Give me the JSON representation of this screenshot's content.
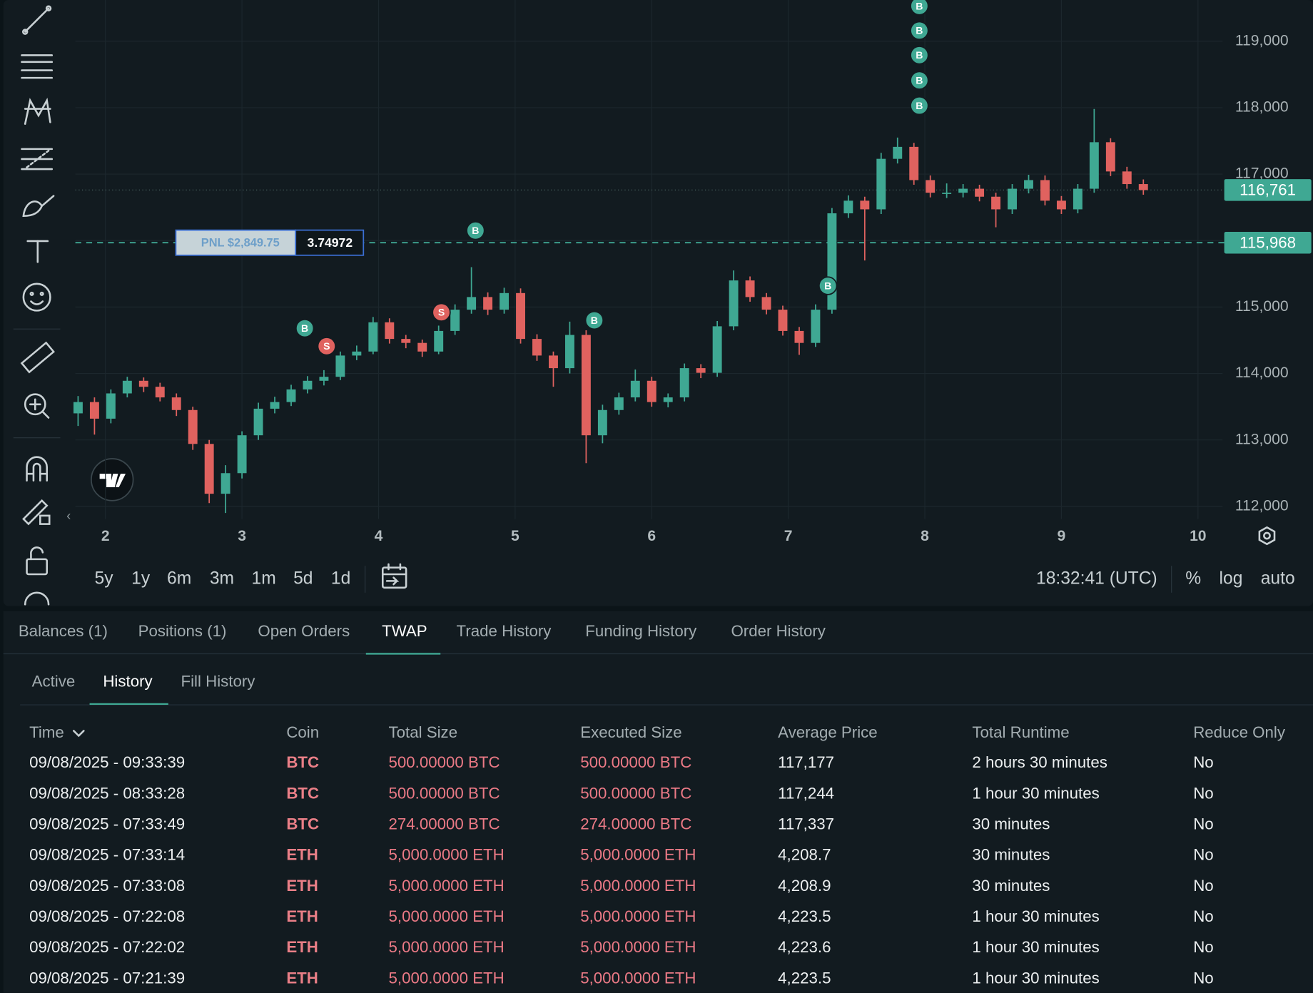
{
  "chart_data": {
    "type": "candlestick",
    "x": [
      1.8,
      1.92,
      2.04,
      2.16,
      2.28,
      2.4,
      2.52,
      2.64,
      2.76,
      2.88,
      3,
      3.12,
      3.24,
      3.36,
      3.48,
      3.6,
      3.72,
      3.84,
      3.96,
      4.08,
      4.2,
      4.32,
      4.44,
      4.56,
      4.68,
      4.8,
      4.92,
      5.04,
      5.16,
      5.28,
      5.4,
      5.52,
      5.64,
      5.76,
      5.88,
      6,
      6.12,
      6.24,
      6.36,
      6.48,
      6.6,
      6.72,
      6.84,
      6.96,
      7.08,
      7.2,
      7.32,
      7.44,
      7.56,
      7.68,
      7.8,
      7.92,
      8.04,
      8.16,
      8.28,
      8.4,
      8.52,
      8.64,
      8.76,
      8.88,
      9,
      9.12,
      9.24,
      9.36,
      9.48,
      9.6
    ],
    "ohlc": [
      [
        113400,
        113660,
        113210,
        113570
      ],
      [
        113570,
        113640,
        113080,
        113320
      ],
      [
        113320,
        113760,
        113250,
        113700
      ],
      [
        113700,
        113950,
        113640,
        113890
      ],
      [
        113890,
        113940,
        113720,
        113800
      ],
      [
        113800,
        113860,
        113580,
        113640
      ],
      [
        113640,
        113700,
        113360,
        113450
      ],
      [
        113450,
        113500,
        112850,
        112940
      ],
      [
        112940,
        113000,
        112050,
        112190
      ],
      [
        112190,
        112620,
        111900,
        112500
      ],
      [
        112500,
        113130,
        112420,
        113070
      ],
      [
        113070,
        113560,
        113000,
        113470
      ],
      [
        113470,
        113650,
        113400,
        113570
      ],
      [
        113570,
        113830,
        113510,
        113760
      ],
      [
        113760,
        113960,
        113700,
        113890
      ],
      [
        113890,
        114050,
        113820,
        113950
      ],
      [
        113950,
        114330,
        113900,
        114270
      ],
      [
        114270,
        114420,
        114200,
        114330
      ],
      [
        114330,
        114850,
        114290,
        114770
      ],
      [
        114770,
        114830,
        114450,
        114520
      ],
      [
        114520,
        114580,
        114380,
        114460
      ],
      [
        114460,
        114510,
        114250,
        114330
      ],
      [
        114330,
        114720,
        114290,
        114640
      ],
      [
        114640,
        115040,
        114580,
        114960
      ],
      [
        114960,
        115600,
        114900,
        115150
      ],
      [
        115150,
        115220,
        114880,
        114960
      ],
      [
        114960,
        115290,
        114900,
        115210
      ],
      [
        115210,
        115280,
        114450,
        114520
      ],
      [
        114520,
        114590,
        114190,
        114270
      ],
      [
        114270,
        114330,
        113800,
        114080
      ],
      [
        114080,
        114780,
        114000,
        114580
      ],
      [
        114580,
        114650,
        112650,
        113070
      ],
      [
        113070,
        113530,
        112950,
        113450
      ],
      [
        113450,
        113710,
        113380,
        113640
      ],
      [
        113640,
        114060,
        113580,
        113890
      ],
      [
        113890,
        113950,
        113500,
        113570
      ],
      [
        113570,
        113700,
        113490,
        113640
      ],
      [
        113640,
        114150,
        113580,
        114080
      ],
      [
        114080,
        114140,
        113930,
        114010
      ],
      [
        114010,
        114790,
        113950,
        114710
      ],
      [
        114710,
        115550,
        114650,
        115400
      ],
      [
        115400,
        115460,
        115080,
        115150
      ],
      [
        115150,
        115210,
        114890,
        114960
      ],
      [
        114960,
        115020,
        114570,
        114640
      ],
      [
        114640,
        114700,
        114280,
        114460
      ],
      [
        114460,
        115040,
        114400,
        114960
      ],
      [
        114960,
        116490,
        114900,
        116410
      ],
      [
        116410,
        116680,
        116340,
        116600
      ],
      [
        116600,
        116660,
        115700,
        116470
      ],
      [
        116470,
        117320,
        116400,
        117230
      ],
      [
        117230,
        117550,
        117160,
        117410
      ],
      [
        117410,
        117470,
        116840,
        116910
      ],
      [
        116910,
        116980,
        116650,
        116720
      ],
      [
        116720,
        116860,
        116640,
        116720
      ],
      [
        116720,
        116850,
        116650,
        116780
      ],
      [
        116780,
        116840,
        116590,
        116660
      ],
      [
        116660,
        116720,
        116200,
        116470
      ],
      [
        116470,
        116850,
        116400,
        116780
      ],
      [
        116780,
        116990,
        116710,
        116910
      ],
      [
        116910,
        116980,
        116530,
        116600
      ],
      [
        116600,
        116670,
        116400,
        116470
      ],
      [
        116470,
        116850,
        116410,
        116780
      ],
      [
        116780,
        117980,
        116720,
        117480
      ],
      [
        117480,
        117540,
        116970,
        117040
      ],
      [
        117040,
        117110,
        116780,
        116850
      ],
      [
        116850,
        116920,
        116690,
        116760
      ]
    ],
    "up_color": "#3fa893",
    "down_color": "#e0625f",
    "xlim": [
      1.78,
      10.18
    ],
    "xticks": [
      2,
      3,
      4,
      5,
      6,
      7,
      8,
      9,
      10
    ],
    "ylim": [
      111810,
      119620
    ],
    "yticks": [
      {
        "value": 112000,
        "label": "112,000"
      },
      {
        "value": 113000,
        "label": "113,000"
      },
      {
        "value": 114000,
        "label": "114,000"
      },
      {
        "value": 115000,
        "label": "115,000"
      },
      {
        "value": 116000,
        "label": "116,000"
      },
      {
        "value": 117000,
        "label": "117,000"
      },
      {
        "value": 118000,
        "label": "118,000"
      },
      {
        "value": 119000,
        "label": "119,000"
      }
    ],
    "grid": true,
    "markers": [
      {
        "label": "B",
        "x": 3.46,
        "price": 114680
      },
      {
        "label": "S",
        "x": 3.62,
        "price": 114410
      },
      {
        "label": "S",
        "x": 4.46,
        "price": 114920
      },
      {
        "label": "B",
        "x": 4.71,
        "price": 116150
      },
      {
        "label": "B",
        "x": 5.58,
        "price": 114800
      },
      {
        "label": "B",
        "x": 7.29,
        "price": 115320
      },
      {
        "label": "B",
        "x": 7.96,
        "price": 119530
      },
      {
        "label": "B",
        "x": 7.96,
        "price": 119160
      },
      {
        "label": "B",
        "x": 7.96,
        "price": 118790
      },
      {
        "label": "B",
        "x": 7.96,
        "price": 118410
      },
      {
        "label": "B",
        "x": 7.96,
        "price": 118030
      }
    ],
    "price_lines": [
      {
        "value": 116761,
        "label": "116,761",
        "style": "dotted"
      },
      {
        "value": 115968,
        "label": "115,968",
        "style": "dashed"
      }
    ],
    "position": {
      "pnl": "PNL $2,849.75",
      "size": 3.74972
    }
  },
  "chart_footer": {
    "timeframes": [
      "5y",
      "1y",
      "6m",
      "3m",
      "1m",
      "5d",
      "1d"
    ],
    "clock": "18:32:41 (UTC)",
    "options": [
      "%",
      "log",
      "auto"
    ]
  },
  "tabs": [
    "Balances (1)",
    "Positions (1)",
    "Open Orders",
    "TWAP",
    "Trade History",
    "Funding History",
    "Order History"
  ],
  "subtabs": [
    "Active",
    "History",
    "Fill History"
  ],
  "table": {
    "headers": [
      "Time",
      "Coin",
      "Total Size",
      "Executed Size",
      "Average Price",
      "Total Runtime",
      "Reduce Only"
    ],
    "rows": [
      [
        "09/08/2025 - 09:33:39",
        "BTC",
        "500.00000 BTC",
        "500.00000 BTC",
        "117,177",
        "2 hours 30 minutes",
        "No"
      ],
      [
        "09/08/2025 - 08:33:28",
        "BTC",
        "500.00000 BTC",
        "500.00000 BTC",
        "117,244",
        "1 hour 30 minutes",
        "No"
      ],
      [
        "09/08/2025 - 07:33:49",
        "BTC",
        "274.00000 BTC",
        "274.00000 BTC",
        "117,337",
        "30 minutes",
        "No"
      ],
      [
        "09/08/2025 - 07:33:14",
        "ETH",
        "5,000.0000 ETH",
        "5,000.0000 ETH",
        "4,208.7",
        "30 minutes",
        "No"
      ],
      [
        "09/08/2025 - 07:33:08",
        "ETH",
        "5,000.0000 ETH",
        "5,000.0000 ETH",
        "4,208.9",
        "30 minutes",
        "No"
      ],
      [
        "09/08/2025 - 07:22:08",
        "ETH",
        "5,000.0000 ETH",
        "5,000.0000 ETH",
        "4,223.5",
        "1 hour 30 minutes",
        "No"
      ],
      [
        "09/08/2025 - 07:22:02",
        "ETH",
        "5,000.0000 ETH",
        "5,000.0000 ETH",
        "4,223.6",
        "1 hour 30 minutes",
        "No"
      ],
      [
        "09/08/2025 - 07:21:39",
        "ETH",
        "5,000.0000 ETH",
        "5,000.0000 ETH",
        "4,223.5",
        "1 hour 30 minutes",
        "No"
      ]
    ]
  }
}
